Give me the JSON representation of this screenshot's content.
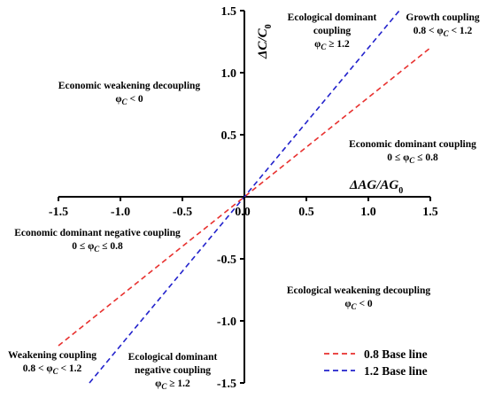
{
  "chart_data": {
    "type": "line",
    "x_axis_label": "ΔAG/AG",
    "x_axis_label_subscript": "0",
    "y_axis_label": "ΔC/C",
    "y_axis_label_subscript": "0",
    "xlim": [
      -1.5,
      1.5
    ],
    "ylim": [
      -1.5,
      1.5
    ],
    "x_ticks": [
      -1.5,
      -1.0,
      -0.5,
      0.0,
      0.5,
      1.0,
      1.5
    ],
    "x_tick_labels": [
      "-1.5",
      "-1.0",
      "-0.5",
      "0.0",
      "0.5",
      "1.0",
      "1.5"
    ],
    "y_ticks": [
      -1.5,
      -1.0,
      -0.5,
      0.5,
      1.0,
      1.5
    ],
    "y_tick_labels": [
      "-1.5",
      "-1.0",
      "-0.5",
      "0.5",
      "1.0",
      "1.5"
    ],
    "grid": false,
    "legend_position": "bottom-right",
    "series": [
      {
        "name": "0.8 Base line",
        "slope": 0.8,
        "color": "#e8312f",
        "x": [
          -1.5,
          1.5
        ],
        "y": [
          -1.2,
          1.2
        ]
      },
      {
        "name": "1.2 Base line",
        "slope": 1.2,
        "color": "#2222cc",
        "x": [
          -1.25,
          1.25
        ],
        "y": [
          -1.5,
          1.5
        ]
      }
    ],
    "annotations": [
      {
        "lines": [
          "Ecological dominant",
          "coupling",
          "φC ≥ 1.2"
        ]
      },
      {
        "lines": [
          "Growth coupling",
          "0.8 < φC < 1.2"
        ]
      },
      {
        "lines": [
          "Economic weakening decoupling",
          "φC < 0"
        ]
      },
      {
        "lines": [
          "Economic dominant coupling",
          "0 ≤ φC ≤ 0.8"
        ]
      },
      {
        "lines": [
          "Economic dominant negative coupling",
          "0 ≤ φC ≤ 0.8"
        ]
      },
      {
        "lines": [
          "Ecological weakening decoupling",
          "φC < 0"
        ]
      },
      {
        "lines": [
          "Weakening coupling",
          "0.8 < φC < 1.2"
        ]
      },
      {
        "lines": [
          "Ecological dominant",
          "negative coupling",
          "φC ≥ 1.2"
        ]
      }
    ]
  }
}
